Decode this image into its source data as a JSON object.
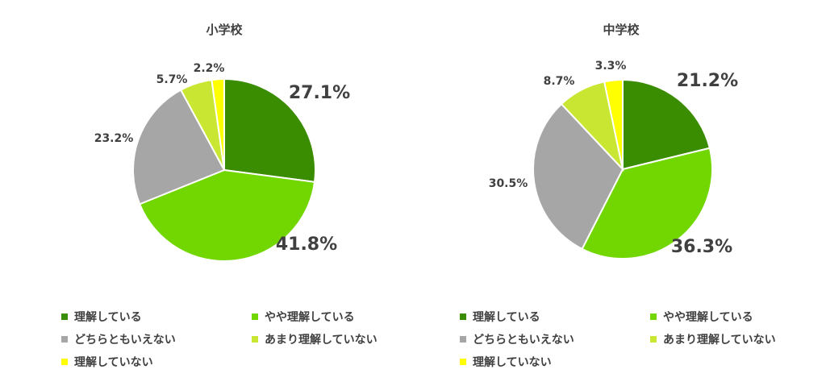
{
  "chart_data": [
    {
      "type": "pie",
      "title": "小学校",
      "series": [
        {
          "name": "理解している",
          "value": 27.1,
          "label": "27.1%",
          "color": "#3a8c00"
        },
        {
          "name": "やや理解している",
          "value": 41.8,
          "label": "41.8%",
          "color": "#72d600"
        },
        {
          "name": "どちらともいえない",
          "value": 23.2,
          "label": "23.2%",
          "color": "#a6a6a6"
        },
        {
          "name": "あまり理解していない",
          "value": 5.7,
          "label": "5.7%",
          "color": "#c9e633"
        },
        {
          "name": "理解していない",
          "value": 2.2,
          "label": "2.2%",
          "color": "#ffff00"
        }
      ],
      "legend_position": "bottom"
    },
    {
      "type": "pie",
      "title": "中学校",
      "series": [
        {
          "name": "理解している",
          "value": 21.2,
          "label": "21.2%",
          "color": "#3a8c00"
        },
        {
          "name": "やや理解している",
          "value": 36.3,
          "label": "36.3%",
          "color": "#72d600"
        },
        {
          "name": "どちらともいえない",
          "value": 30.5,
          "label": "30.5%",
          "color": "#a6a6a6"
        },
        {
          "name": "あまり理解していない",
          "value": 8.7,
          "label": "8.7%",
          "color": "#c9e633"
        },
        {
          "name": "理解していない",
          "value": 3.3,
          "label": "3.3%",
          "color": "#ffff00"
        }
      ],
      "legend_position": "bottom"
    }
  ]
}
